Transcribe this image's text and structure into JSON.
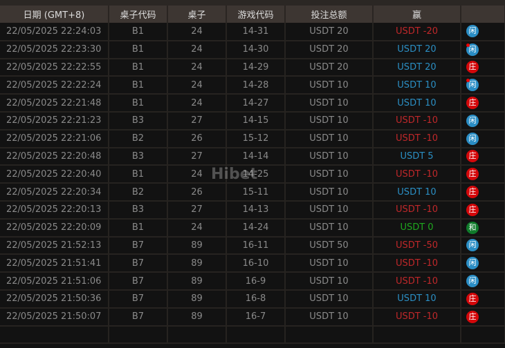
{
  "headers": [
    "日期 (GMT+8)",
    "桌子代码",
    "桌子",
    "游戏代码",
    "投注总额",
    "赢",
    ""
  ],
  "watermark": "Hibet",
  "colors": {
    "loss": "#c0282a",
    "win": "#2b8fc4",
    "tie": "#1fa81f",
    "player_badge": "#2a8dc4",
    "banker_badge": "#d4070a",
    "tie_badge": "#0f7a2a"
  },
  "rows": [
    {
      "date": "22/05/2025 22:24:03",
      "table_code": "B1",
      "table": "24",
      "game": "14-31",
      "bet": "USDT 20",
      "win": "USDT -20",
      "win_type": "neg",
      "result": "闲",
      "result_type": "p",
      "dot": false
    },
    {
      "date": "22/05/2025 22:23:30",
      "table_code": "B1",
      "table": "24",
      "game": "14-30",
      "bet": "USDT 20",
      "win": "USDT 20",
      "win_type": "pos",
      "result": "闲",
      "result_type": "p",
      "dot": true
    },
    {
      "date": "22/05/2025 22:22:55",
      "table_code": "B1",
      "table": "24",
      "game": "14-29",
      "bet": "USDT 20",
      "win": "USDT 20",
      "win_type": "pos",
      "result": "庄",
      "result_type": "b",
      "dot": false
    },
    {
      "date": "22/05/2025 22:22:24",
      "table_code": "B1",
      "table": "24",
      "game": "14-28",
      "bet": "USDT 10",
      "win": "USDT 10",
      "win_type": "pos",
      "result": "闲",
      "result_type": "p",
      "dot": true
    },
    {
      "date": "22/05/2025 22:21:48",
      "table_code": "B1",
      "table": "24",
      "game": "14-27",
      "bet": "USDT 10",
      "win": "USDT 10",
      "win_type": "pos",
      "result": "庄",
      "result_type": "b",
      "dot": false
    },
    {
      "date": "22/05/2025 22:21:23",
      "table_code": "B3",
      "table": "27",
      "game": "14-15",
      "bet": "USDT 10",
      "win": "USDT -10",
      "win_type": "neg",
      "result": "闲",
      "result_type": "p",
      "dot": false
    },
    {
      "date": "22/05/2025 22:21:06",
      "table_code": "B2",
      "table": "26",
      "game": "15-12",
      "bet": "USDT 10",
      "win": "USDT -10",
      "win_type": "neg",
      "result": "闲",
      "result_type": "p",
      "dot": false
    },
    {
      "date": "22/05/2025 22:20:48",
      "table_code": "B3",
      "table": "27",
      "game": "14-14",
      "bet": "USDT 10",
      "win": "USDT 5",
      "win_type": "pos",
      "result": "庄",
      "result_type": "b",
      "dot": false
    },
    {
      "date": "22/05/2025 22:20:40",
      "table_code": "B1",
      "table": "24",
      "game": "14-25",
      "bet": "USDT 10",
      "win": "USDT -10",
      "win_type": "neg",
      "result": "庄",
      "result_type": "b",
      "dot": false
    },
    {
      "date": "22/05/2025 22:20:34",
      "table_code": "B2",
      "table": "26",
      "game": "15-11",
      "bet": "USDT 10",
      "win": "USDT 10",
      "win_type": "pos",
      "result": "庄",
      "result_type": "b",
      "dot": false
    },
    {
      "date": "22/05/2025 22:20:13",
      "table_code": "B3",
      "table": "27",
      "game": "14-13",
      "bet": "USDT 10",
      "win": "USDT -10",
      "win_type": "neg",
      "result": "庄",
      "result_type": "b",
      "dot": false
    },
    {
      "date": "22/05/2025 22:20:09",
      "table_code": "B1",
      "table": "24",
      "game": "14-24",
      "bet": "USDT 10",
      "win": "USDT 0",
      "win_type": "zero",
      "result": "和",
      "result_type": "t",
      "dot": false
    },
    {
      "date": "22/05/2025 21:52:13",
      "table_code": "B7",
      "table": "89",
      "game": "16-11",
      "bet": "USDT 50",
      "win": "USDT -50",
      "win_type": "neg",
      "result": "闲",
      "result_type": "p",
      "dot": false
    },
    {
      "date": "22/05/2025 21:51:41",
      "table_code": "B7",
      "table": "89",
      "game": "16-10",
      "bet": "USDT 10",
      "win": "USDT -10",
      "win_type": "neg",
      "result": "闲",
      "result_type": "p",
      "dot": false
    },
    {
      "date": "22/05/2025 21:51:06",
      "table_code": "B7",
      "table": "89",
      "game": "16-9",
      "bet": "USDT 10",
      "win": "USDT -10",
      "win_type": "neg",
      "result": "闲",
      "result_type": "p",
      "dot": false
    },
    {
      "date": "22/05/2025 21:50:36",
      "table_code": "B7",
      "table": "89",
      "game": "16-8",
      "bet": "USDT 10",
      "win": "USDT 10",
      "win_type": "pos",
      "result": "庄",
      "result_type": "b",
      "dot": false
    },
    {
      "date": "22/05/2025 21:50:07",
      "table_code": "B7",
      "table": "89",
      "game": "16-7",
      "bet": "USDT 10",
      "win": "USDT -10",
      "win_type": "neg",
      "result": "庄",
      "result_type": "b",
      "dot": false
    }
  ]
}
